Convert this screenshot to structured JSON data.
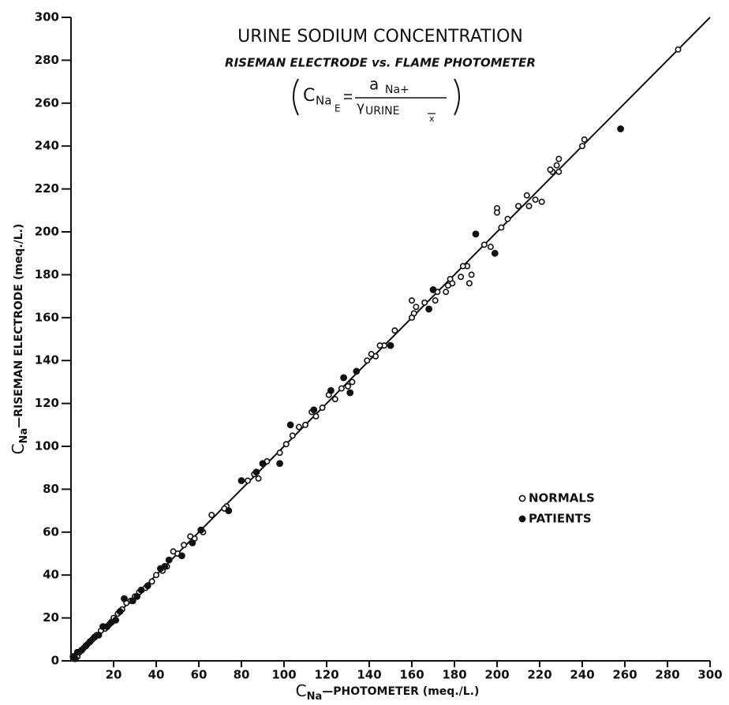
{
  "chart_data": {
    "type": "scatter",
    "title": "URINE SODIUM CONCENTRATION",
    "subtitle": "RISEMAN ELECTRODE vs. FLAME PHOTOMETER",
    "formula": {
      "lhs": "C",
      "lhs_sub": "Na",
      "lhs_subsub": "E",
      "numerator": "a",
      "numerator_sub": "Na+",
      "denominator_symbol": "γ",
      "denominator_sub": "URINE",
      "denominator_subsub": "x"
    },
    "x_label_symbol": "C",
    "x_label_sub": "Na",
    "x_label": "—PHOTOMETER (meq./L.)",
    "y_label_symbol": "C",
    "y_label_sub": "Na",
    "y_label": "—RISEMAN ELECTRODE (meq./L.)",
    "xlim": [
      0,
      300
    ],
    "ylim": [
      0,
      300
    ],
    "xticks": [
      20,
      40,
      60,
      80,
      100,
      120,
      140,
      160,
      180,
      200,
      220,
      240,
      260,
      280,
      300
    ],
    "yticks": [
      0,
      20,
      40,
      60,
      80,
      100,
      120,
      140,
      160,
      180,
      200,
      220,
      240,
      260,
      280,
      300
    ],
    "fit_line": {
      "x": [
        0,
        300
      ],
      "y": [
        0,
        300
      ],
      "color": "#111111"
    },
    "legend": "right",
    "series": [
      {
        "name": "NORMALS",
        "marker": "open",
        "color": "#111111",
        "x": [
          285,
          241,
          240,
          229,
          228,
          226,
          225,
          229,
          221,
          218,
          214,
          215,
          210,
          205,
          202,
          200,
          200,
          197,
          194,
          186,
          188,
          187,
          184,
          183,
          179,
          178,
          177,
          176,
          172,
          170,
          171,
          166,
          162,
          160,
          161,
          160,
          152,
          147,
          145,
          143,
          141,
          139,
          132,
          130,
          127,
          124,
          121,
          118,
          115,
          113,
          110,
          107,
          104,
          101,
          98,
          92,
          88,
          86,
          83,
          73,
          72,
          66,
          62,
          58,
          56,
          53,
          50,
          48,
          45,
          43,
          40,
          38,
          35,
          32,
          30,
          28,
          26,
          24,
          22,
          20,
          18,
          16,
          14,
          12,
          10,
          8,
          6,
          4,
          3,
          1
        ],
        "values": [
          285,
          243,
          240,
          234,
          231,
          228,
          229,
          228,
          214,
          215,
          217,
          212,
          212,
          206,
          202,
          211,
          209,
          193,
          194,
          184,
          180,
          176,
          184,
          179,
          176,
          178,
          175,
          172,
          172,
          173,
          168,
          167,
          165,
          168,
          162,
          160,
          154,
          147,
          147,
          142,
          143,
          140,
          130,
          128,
          127,
          122,
          124,
          118,
          114,
          116,
          110,
          109,
          105,
          101,
          97,
          93,
          85,
          87,
          84,
          72,
          71,
          68,
          60,
          57,
          58,
          54,
          50,
          51,
          44,
          42,
          40,
          37,
          34,
          32,
          30,
          28,
          27,
          24,
          22,
          20,
          17,
          15,
          14,
          12,
          10,
          8,
          6,
          4,
          2,
          1
        ]
      },
      {
        "name": "PATIENTS",
        "marker": "filled",
        "color": "#111111",
        "x": [
          258,
          199,
          190,
          170,
          168,
          150,
          134,
          131,
          128,
          122,
          114,
          103,
          98,
          90,
          87,
          80,
          74,
          61,
          57,
          52,
          46,
          44,
          42,
          36,
          33,
          31,
          29,
          25,
          23,
          21,
          19,
          17,
          15,
          13,
          11,
          9,
          7,
          5,
          3,
          2,
          1
        ],
        "values": [
          248,
          190,
          199,
          173,
          164,
          147,
          135,
          125,
          132,
          126,
          117,
          110,
          92,
          92,
          88,
          84,
          70,
          61,
          55,
          49,
          47,
          44,
          43,
          35,
          33,
          30,
          28,
          29,
          23,
          19,
          18,
          16,
          16,
          12,
          11,
          9,
          7,
          5,
          4,
          1,
          2
        ]
      }
    ]
  }
}
